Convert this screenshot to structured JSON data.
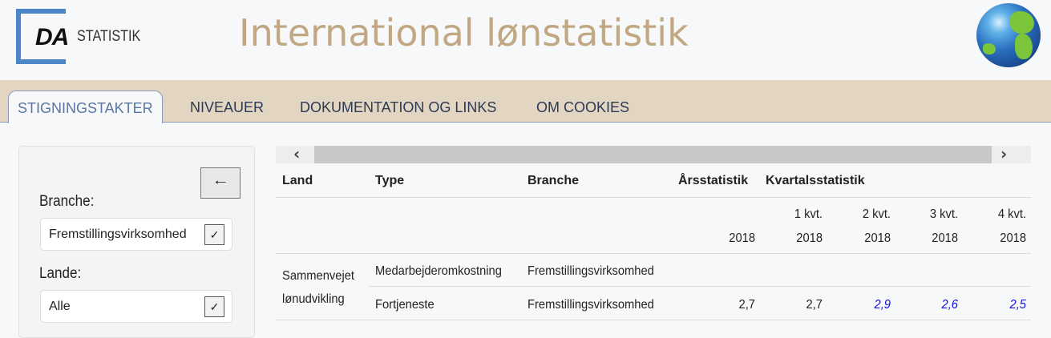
{
  "header": {
    "logo_mark": "DA",
    "logo_text": "STATISTIK",
    "title": "International lønstatistik",
    "globe_icon": "globe-icon"
  },
  "tabs": [
    {
      "label": "STIGNINGSTAKTER",
      "active": true
    },
    {
      "label": "NIVEAUER"
    },
    {
      "label": "DOKUMENTATION OG LINKS"
    },
    {
      "label": "OM COOKIES"
    }
  ],
  "sidebar": {
    "back_icon": "arrow-left-icon",
    "branche_label": "Branche:",
    "branche_value": "Fremstillingsvirksomhed",
    "lande_label": "Lande:",
    "lande_value": "Alle"
  },
  "table": {
    "headers": {
      "land": "Land",
      "type": "Type",
      "branche": "Branche",
      "aars": "Årsstatistik",
      "kvartal": "Kvartalsstatistik"
    },
    "periods": [
      {
        "l1": "",
        "l2": "2018"
      },
      {
        "l1": "1 kvt.",
        "l2": "2018"
      },
      {
        "l1": "2 kvt.",
        "l2": "2018"
      },
      {
        "l1": "3 kvt.",
        "l2": "2018"
      },
      {
        "l1": "4 kvt.",
        "l2": "2018"
      }
    ],
    "land": "Sammenvejet lønudvikling",
    "rows": [
      {
        "type": "Medarbejderomkostning",
        "branche": "Fremstillingsvirksomhed",
        "values": [
          "",
          "",
          "",
          "",
          ""
        ]
      },
      {
        "type": "Fortjeneste",
        "branche": "Fremstillingsvirksomhed",
        "values": [
          "2,7",
          "2,7",
          "2,9",
          "2,6",
          "2,5"
        ],
        "highlight": [
          false,
          false,
          true,
          true,
          true
        ]
      }
    ]
  },
  "colors": {
    "title": "#c1a883",
    "tabbar": "#e2d5c2",
    "logo": "#4a86c8",
    "highlight_value": "#1010e8"
  }
}
